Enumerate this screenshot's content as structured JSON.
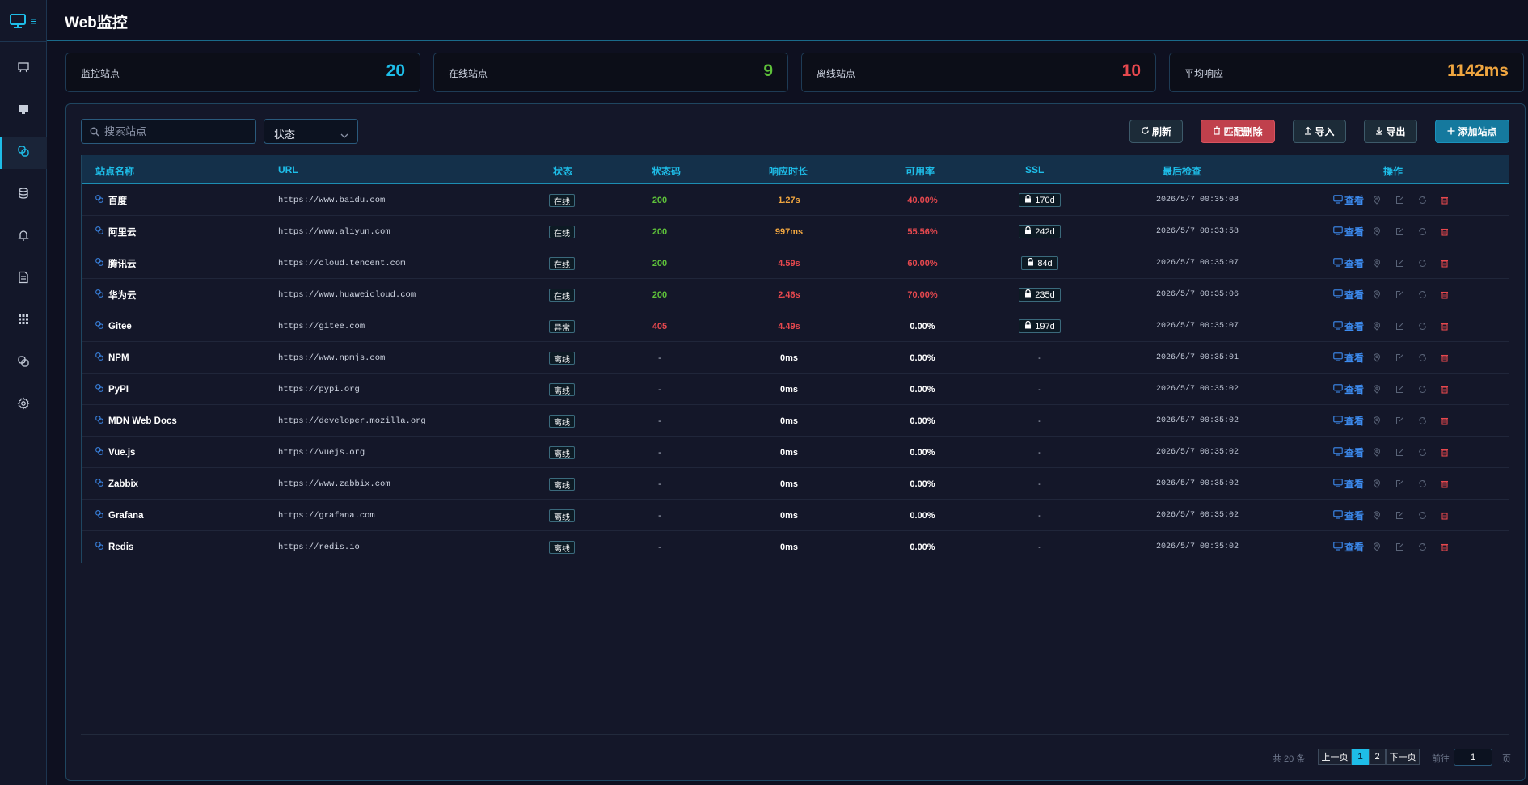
{
  "app": {
    "title": "Web监控"
  },
  "colors": {
    "accent": "#1ebde8",
    "online": "#5ec23a",
    "offline": "#e6484e",
    "warning": "#f0a640",
    "link": "#3d8cf0"
  },
  "sidebar": {
    "logo_icon": "monitor-icon",
    "menu_icon": "menu-icon",
    "items": [
      {
        "icon": "presentation-icon",
        "active": false
      },
      {
        "icon": "desktop-icon",
        "active": false
      },
      {
        "icon": "web-monitor-icon",
        "active": true
      },
      {
        "icon": "database-icon",
        "active": false
      },
      {
        "icon": "bell-icon",
        "active": false
      },
      {
        "icon": "document-icon",
        "active": false
      },
      {
        "icon": "grid-icon",
        "active": false
      },
      {
        "icon": "link-icon",
        "active": false
      },
      {
        "icon": "gear-icon",
        "active": false
      }
    ]
  },
  "stats": [
    {
      "label": "监控站点",
      "value": "20",
      "color": "#1ebde8"
    },
    {
      "label": "在线站点",
      "value": "9",
      "color": "#5ec23a"
    },
    {
      "label": "离线站点",
      "value": "10",
      "color": "#e6484e"
    },
    {
      "label": "平均响应",
      "value": "1142ms",
      "color": "#f0a640"
    }
  ],
  "toolbar": {
    "search_placeholder": "搜索站点",
    "status_select": "状态",
    "refresh": "刷新",
    "match_delete": "匹配删除",
    "import": "导入",
    "export": "导出",
    "add_site": "添加站点"
  },
  "table": {
    "headers": {
      "name": "站点名称",
      "url": "URL",
      "status": "状态",
      "code": "状态码",
      "response": "响应时长",
      "uptime": "可用率",
      "ssl": "SSL",
      "last_check": "最后检查",
      "actions": "操作"
    },
    "view_label": "查看",
    "rows": [
      {
        "name": "百度",
        "url": "https://www.baidu.com",
        "status": "在线",
        "code": "200",
        "code_color": "#5ec23a",
        "response": "1.27s",
        "response_color": "#f0a640",
        "uptime": "40.00%",
        "uptime_color": "#e6484e",
        "ssl": "170d",
        "last_check": "2026/5/7 00:35:08"
      },
      {
        "name": "阿里云",
        "url": "https://www.aliyun.com",
        "status": "在线",
        "code": "200",
        "code_color": "#5ec23a",
        "response": "997ms",
        "response_color": "#f0a640",
        "uptime": "55.56%",
        "uptime_color": "#e6484e",
        "ssl": "242d",
        "last_check": "2026/5/7 00:33:58"
      },
      {
        "name": "腾讯云",
        "url": "https://cloud.tencent.com",
        "status": "在线",
        "code": "200",
        "code_color": "#5ec23a",
        "response": "4.59s",
        "response_color": "#e6484e",
        "uptime": "60.00%",
        "uptime_color": "#e6484e",
        "ssl": "84d",
        "last_check": "2026/5/7 00:35:07"
      },
      {
        "name": "华为云",
        "url": "https://www.huaweicloud.com",
        "status": "在线",
        "code": "200",
        "code_color": "#5ec23a",
        "response": "2.46s",
        "response_color": "#e6484e",
        "uptime": "70.00%",
        "uptime_color": "#e6484e",
        "ssl": "235d",
        "last_check": "2026/5/7 00:35:06"
      },
      {
        "name": "Gitee",
        "url": "https://gitee.com",
        "status": "异常",
        "code": "405",
        "code_color": "#e6484e",
        "response": "4.49s",
        "response_color": "#e6484e",
        "uptime": "0.00%",
        "uptime_color": "#ffffff",
        "ssl": "197d",
        "last_check": "2026/5/7 00:35:07"
      },
      {
        "name": "NPM",
        "url": "https://www.npmjs.com",
        "status": "离线",
        "code": "-",
        "code_color": "#c0c7d6",
        "response": "0ms",
        "response_color": "#ffffff",
        "uptime": "0.00%",
        "uptime_color": "#ffffff",
        "ssl": "-",
        "last_check": "2026/5/7 00:35:01"
      },
      {
        "name": "PyPI",
        "url": "https://pypi.org",
        "status": "离线",
        "code": "-",
        "code_color": "#c0c7d6",
        "response": "0ms",
        "response_color": "#ffffff",
        "uptime": "0.00%",
        "uptime_color": "#ffffff",
        "ssl": "-",
        "last_check": "2026/5/7 00:35:02"
      },
      {
        "name": "MDN Web Docs",
        "url": "https://developer.mozilla.org",
        "status": "离线",
        "code": "-",
        "code_color": "#c0c7d6",
        "response": "0ms",
        "response_color": "#ffffff",
        "uptime": "0.00%",
        "uptime_color": "#ffffff",
        "ssl": "-",
        "last_check": "2026/5/7 00:35:02"
      },
      {
        "name": "Vue.js",
        "url": "https://vuejs.org",
        "status": "离线",
        "code": "-",
        "code_color": "#c0c7d6",
        "response": "0ms",
        "response_color": "#ffffff",
        "uptime": "0.00%",
        "uptime_color": "#ffffff",
        "ssl": "-",
        "last_check": "2026/5/7 00:35:02"
      },
      {
        "name": "Zabbix",
        "url": "https://www.zabbix.com",
        "status": "离线",
        "code": "-",
        "code_color": "#c0c7d6",
        "response": "0ms",
        "response_color": "#ffffff",
        "uptime": "0.00%",
        "uptime_color": "#ffffff",
        "ssl": "-",
        "last_check": "2026/5/7 00:35:02"
      },
      {
        "name": "Grafana",
        "url": "https://grafana.com",
        "status": "离线",
        "code": "-",
        "code_color": "#c0c7d6",
        "response": "0ms",
        "response_color": "#ffffff",
        "uptime": "0.00%",
        "uptime_color": "#ffffff",
        "ssl": "-",
        "last_check": "2026/5/7 00:35:02"
      },
      {
        "name": "Redis",
        "url": "https://redis.io",
        "status": "离线",
        "code": "-",
        "code_color": "#c0c7d6",
        "response": "0ms",
        "response_color": "#ffffff",
        "uptime": "0.00%",
        "uptime_color": "#ffffff",
        "ssl": "-",
        "last_check": "2026/5/7 00:35:02"
      }
    ]
  },
  "pagination": {
    "total": "共 20 条",
    "prev": "上一页",
    "pages": [
      "1",
      "2"
    ],
    "current": "1",
    "next": "下一页",
    "goto_label": "前往",
    "goto_value": "1",
    "page_unit": "页"
  }
}
